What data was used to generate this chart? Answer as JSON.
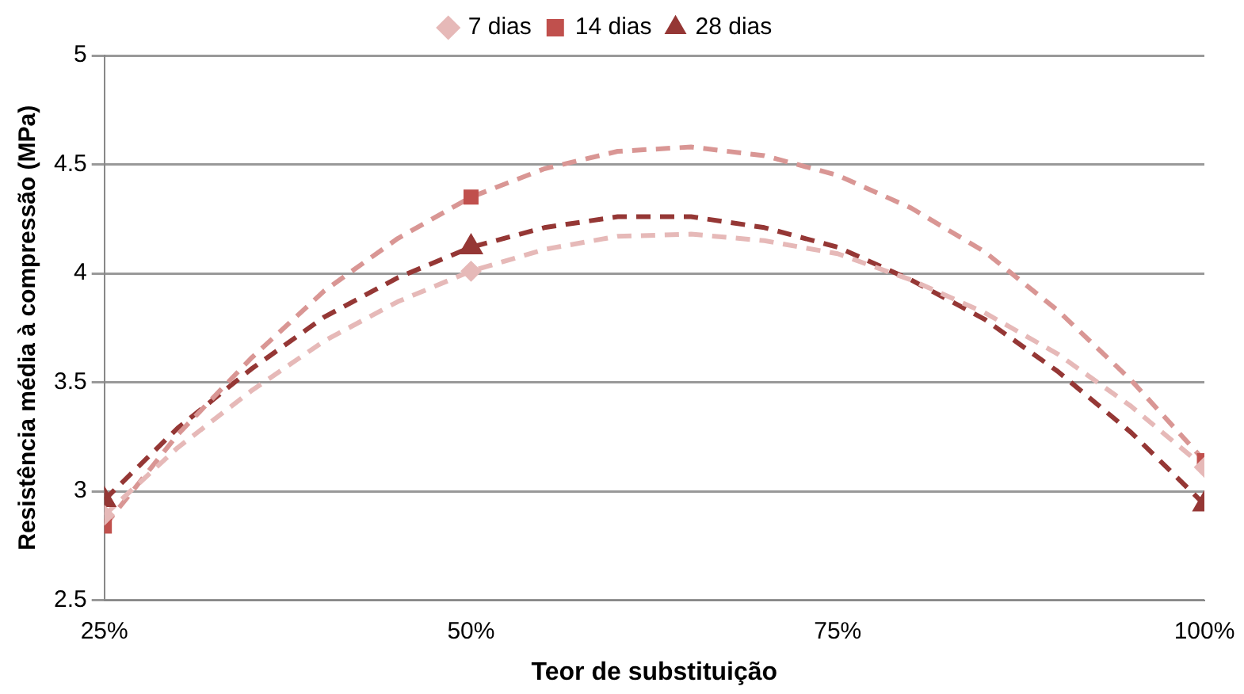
{
  "chart_data": {
    "type": "scatter",
    "xlabel": "Teor de substituição",
    "ylabel": "Resistência média à compressão (MPa)",
    "x": [
      25,
      50,
      100
    ],
    "series": [
      {
        "name": "7 dias",
        "type": "scatter",
        "marker": "diamond",
        "color": "#e6b9b8",
        "values": [
          2.89,
          4.01,
          3.11
        ]
      },
      {
        "name": "14 dias",
        "type": "scatter",
        "marker": "square",
        "color": "#c0504d",
        "values": [
          2.84,
          4.35,
          3.14
        ]
      },
      {
        "name": "28 dias",
        "type": "scatter",
        "marker": "triangle",
        "color": "#953735",
        "values": [
          2.96,
          4.12,
          2.94
        ]
      },
      {
        "type": "line",
        "line_style": "dashed",
        "marker": "none",
        "color": "#e6b9b8",
        "x": [
          25,
          30,
          35,
          40,
          45,
          50,
          55,
          60,
          65,
          70,
          75,
          80,
          85,
          90,
          95,
          100
        ],
        "values": [
          2.89,
          3.2,
          3.46,
          3.69,
          3.87,
          4.01,
          4.11,
          4.17,
          4.18,
          4.15,
          4.09,
          3.97,
          3.82,
          3.63,
          3.39,
          3.11
        ]
      },
      {
        "type": "line",
        "line_style": "dashed",
        "marker": "none",
        "color": "#d99694",
        "x": [
          25,
          30,
          35,
          40,
          45,
          50,
          55,
          60,
          65,
          70,
          75,
          80,
          85,
          90,
          95,
          100
        ],
        "values": [
          2.84,
          3.26,
          3.61,
          3.92,
          4.16,
          4.35,
          4.48,
          4.56,
          4.58,
          4.54,
          4.45,
          4.3,
          4.1,
          3.83,
          3.51,
          3.14
        ]
      },
      {
        "type": "line",
        "line_style": "dashed",
        "marker": "none",
        "color": "#953735",
        "x": [
          25,
          30,
          35,
          40,
          45,
          50,
          55,
          60,
          65,
          70,
          75,
          80,
          85,
          90,
          95,
          100
        ],
        "values": [
          2.96,
          3.29,
          3.56,
          3.8,
          3.98,
          4.12,
          4.21,
          4.26,
          4.26,
          4.21,
          4.12,
          3.97,
          3.79,
          3.55,
          3.27,
          2.94
        ]
      }
    ],
    "xlim": [
      25,
      100
    ],
    "xticks": [
      {
        "value": 25,
        "label": "25%"
      },
      {
        "value": 50,
        "label": "50%"
      },
      {
        "value": 75,
        "label": "75%"
      },
      {
        "value": 100,
        "label": "100%"
      }
    ],
    "ylim": [
      2.5,
      5
    ],
    "yticks": [
      2.5,
      3,
      3.5,
      4,
      4.5,
      5
    ],
    "grid": "y",
    "legend": "top"
  }
}
